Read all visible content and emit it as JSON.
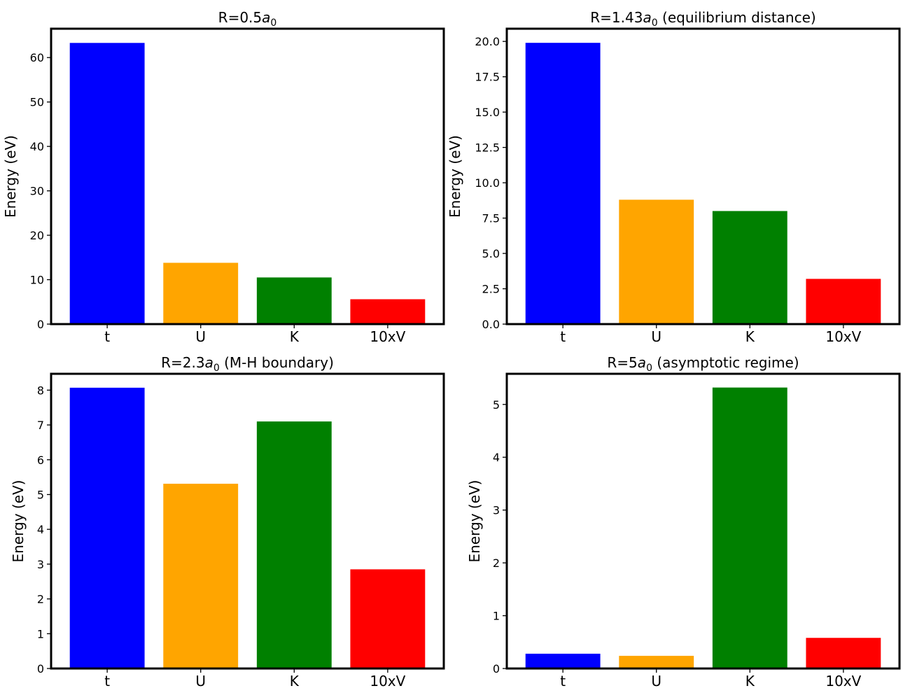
{
  "chart_data": [
    {
      "type": "bar",
      "title_prefix": "R=0.5",
      "title_var": "a",
      "title_sub": "0",
      "title_suffix": "",
      "categories": [
        "t",
        "U",
        "K",
        "10xV"
      ],
      "values": [
        63.3,
        13.8,
        10.5,
        5.6
      ],
      "colors": [
        "#0000ff",
        "#ffa500",
        "#008000",
        "#ff0000"
      ],
      "ylabel": "Energy (eV)",
      "xlabel": "",
      "ylim": [
        0,
        66.5
      ],
      "yticks": [
        0,
        10,
        20,
        30,
        40,
        50,
        60
      ],
      "ytick_labels": [
        "0",
        "10",
        "20",
        "30",
        "40",
        "50",
        "60"
      ]
    },
    {
      "type": "bar",
      "title_prefix": "R=1.43",
      "title_var": "a",
      "title_sub": "0",
      "title_suffix": " (equilibrium distance)",
      "categories": [
        "t",
        "U",
        "K",
        "10xV"
      ],
      "values": [
        19.9,
        8.8,
        8.0,
        3.2
      ],
      "colors": [
        "#0000ff",
        "#ffa500",
        "#008000",
        "#ff0000"
      ],
      "ylabel": "Energy (eV)",
      "xlabel": "",
      "ylim": [
        0,
        20.9
      ],
      "yticks": [
        0,
        2.5,
        5,
        7.5,
        10,
        12.5,
        15,
        17.5,
        20
      ],
      "ytick_labels": [
        "0.0",
        "2.5",
        "5.0",
        "7.5",
        "10.0",
        "12.5",
        "15.0",
        "17.5",
        "20.0"
      ]
    },
    {
      "type": "bar",
      "title_prefix": "R=2.3",
      "title_var": "a",
      "title_sub": "0",
      "title_suffix": " (M-H boundary)",
      "categories": [
        "t",
        "U",
        "K",
        "10xV"
      ],
      "values": [
        8.07,
        5.31,
        7.1,
        2.85
      ],
      "colors": [
        "#0000ff",
        "#ffa500",
        "#008000",
        "#ff0000"
      ],
      "ylabel": "Energy (eV)",
      "xlabel": "",
      "ylim": [
        0,
        8.47
      ],
      "yticks": [
        0,
        1,
        2,
        3,
        4,
        5,
        6,
        7,
        8
      ],
      "ytick_labels": [
        "0",
        "1",
        "2",
        "3",
        "4",
        "5",
        "6",
        "7",
        "8"
      ]
    },
    {
      "type": "bar",
      "title_prefix": "R=5",
      "title_var": "a",
      "title_sub": "0",
      "title_suffix": " (asymptotic regime)",
      "categories": [
        "t",
        "U",
        "K",
        "10xV"
      ],
      "values": [
        0.28,
        0.24,
        5.32,
        0.58
      ],
      "colors": [
        "#0000ff",
        "#ffa500",
        "#008000",
        "#ff0000"
      ],
      "ylabel": "Energy (eV)",
      "xlabel": "",
      "ylim": [
        0,
        5.58
      ],
      "yticks": [
        0,
        1,
        2,
        3,
        4,
        5
      ],
      "ytick_labels": [
        "0",
        "1",
        "2",
        "3",
        "4",
        "5"
      ]
    }
  ]
}
